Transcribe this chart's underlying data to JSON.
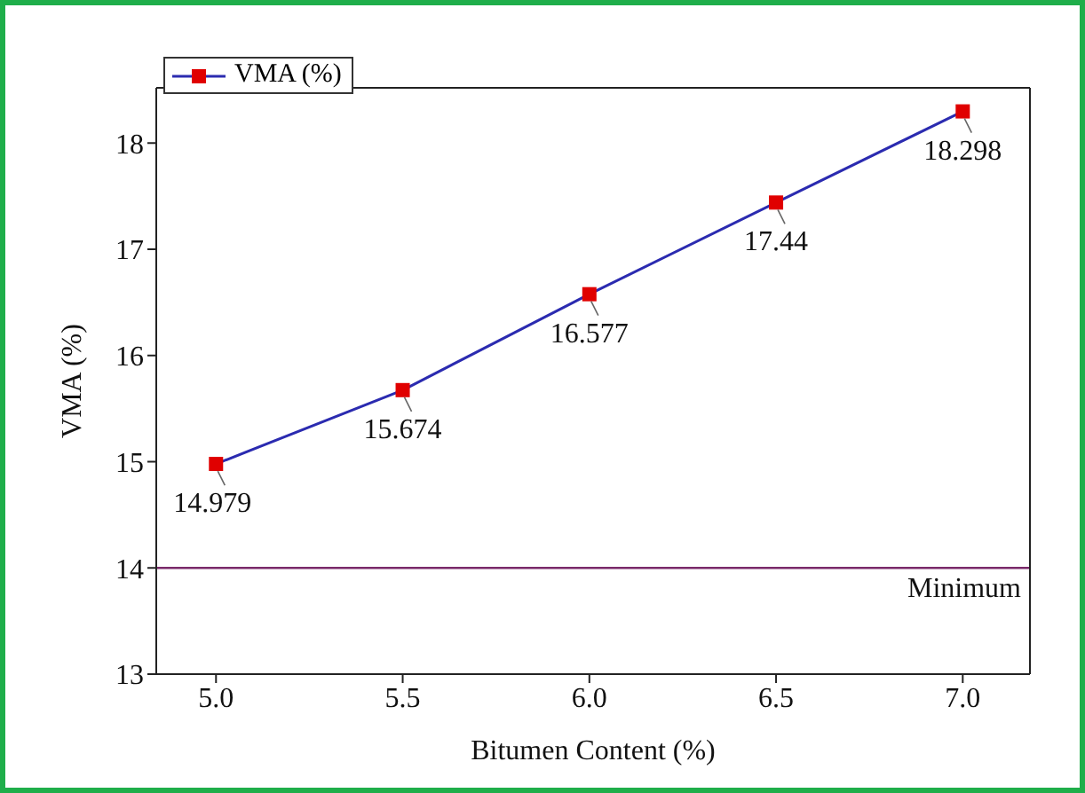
{
  "chart_data": {
    "type": "line",
    "xlabel": "Bitumen Content (%)",
    "ylabel": "VMA (%)",
    "x": [
      5.0,
      5.5,
      6.0,
      6.5,
      7.0
    ],
    "series": [
      {
        "name": "VMA (%)",
        "color": "#2b2bb0",
        "colors": [
          "#e00000",
          "#e00000",
          "#e00000",
          "#e00000",
          "#e00000"
        ],
        "values": [
          14.979,
          15.674,
          16.577,
          17.44,
          18.298
        ]
      }
    ],
    "xlim": [
      4.84,
      7.18
    ],
    "xticks": [
      {
        "value": 5,
        "label": "5.0"
      },
      {
        "value": 5.5,
        "label": "5.5"
      },
      {
        "value": 6,
        "label": "6.0"
      },
      {
        "value": 6.5,
        "label": "6.5"
      },
      {
        "value": 7,
        "label": "7.0"
      }
    ],
    "ylim": [
      13,
      18.52
    ],
    "yticks": [
      13,
      14,
      15,
      16,
      17,
      18
    ],
    "ref_lines": [
      {
        "axis": "y",
        "value": 14,
        "label": "Minimum",
        "color": "#7a2a6a"
      }
    ],
    "marker": "square",
    "data_labels": true,
    "legend": "top left"
  }
}
